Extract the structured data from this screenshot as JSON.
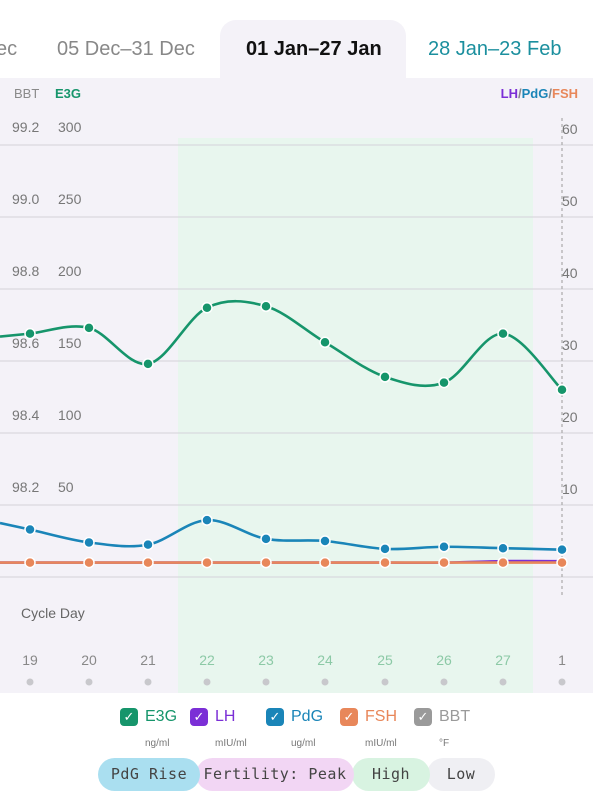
{
  "tabs": [
    {
      "label": "ec"
    },
    {
      "label": "05 Dec–31 Dec"
    },
    {
      "label": "01 Jan–27 Jan"
    },
    {
      "label": "28 Jan–23 Feb"
    }
  ],
  "colors": {
    "e3g": "#16956b",
    "lh": "#7b2fd6",
    "pdg": "#1a85b8",
    "fsh": "#e8875a",
    "bbt": "#9a9a9a",
    "high_band": "#e8f6ee",
    "chart_bg": "#f4f2f8",
    "tab_active": "#111111",
    "tab_next": "#1b8f9e"
  },
  "chart_labels": {
    "left_header_bbt": "BBT",
    "left_header_e3g": "E3G",
    "right_header_lh": "LH",
    "right_header_pdg": "PdG",
    "right_header_fsh": "FSH",
    "slash": "/",
    "cycle_day_label": "Cycle Day"
  },
  "chart_data": {
    "type": "line",
    "categories": [
      "19",
      "20",
      "21",
      "22",
      "23",
      "24",
      "25",
      "26",
      "27",
      "1"
    ],
    "high_days": [
      "22",
      "23",
      "24",
      "25",
      "26",
      "27"
    ],
    "axes": {
      "bbt": {
        "ticks": [
          "99.2",
          "99.0",
          "98.8",
          "98.6",
          "98.4",
          "98.2"
        ],
        "ylim": [
          98.0,
          99.2
        ]
      },
      "e3g": {
        "ticks": [
          "300",
          "250",
          "200",
          "150",
          "100",
          "50"
        ],
        "ylim": [
          0,
          300
        ]
      },
      "right": {
        "ticks": [
          "60",
          "50",
          "40",
          "30",
          "20",
          "10"
        ],
        "ylim": [
          0,
          60
        ]
      }
    },
    "series": [
      {
        "name": "E3G",
        "axis": "e3g",
        "values": [
          169,
          173,
          148,
          187,
          188,
          163,
          139,
          135,
          169,
          130
        ]
      },
      {
        "name": "PdG",
        "axis": "right",
        "values": [
          6.6,
          4.8,
          4.5,
          7.9,
          5.3,
          5.0,
          3.9,
          4.2,
          4.0,
          3.8
        ]
      },
      {
        "name": "FSH",
        "axis": "right",
        "values": [
          2.0,
          2.0,
          2.0,
          2.0,
          2.0,
          2.0,
          2.0,
          2.0,
          2.0,
          2.0
        ]
      },
      {
        "name": "LH",
        "axis": "right",
        "values": [
          2.0,
          2.0,
          2.0,
          2.0,
          2.0,
          2.0,
          2.0,
          2.0,
          2.2,
          2.2
        ]
      }
    ]
  },
  "legend": [
    {
      "key": "e3g",
      "label": "E3G",
      "unit": "ng/ml",
      "checked": true
    },
    {
      "key": "lh",
      "label": "LH",
      "unit": "mIU/ml",
      "checked": true
    },
    {
      "key": "pdg",
      "label": "PdG",
      "unit": "ug/ml",
      "checked": true
    },
    {
      "key": "fsh",
      "label": "FSH",
      "unit": "mIU/ml",
      "checked": true
    },
    {
      "key": "bbt",
      "label": "BBT",
      "unit": "°F",
      "checked": true
    }
  ],
  "checkmark": "✓",
  "phases": [
    {
      "label": "PdG Rise",
      "bg": "#aadff0"
    },
    {
      "label": "Fertility: Peak",
      "bg": "#f2d6f4"
    },
    {
      "label": "High",
      "bg": "#d8f3e1"
    },
    {
      "label": "Low",
      "bg": "#efeff3"
    }
  ]
}
